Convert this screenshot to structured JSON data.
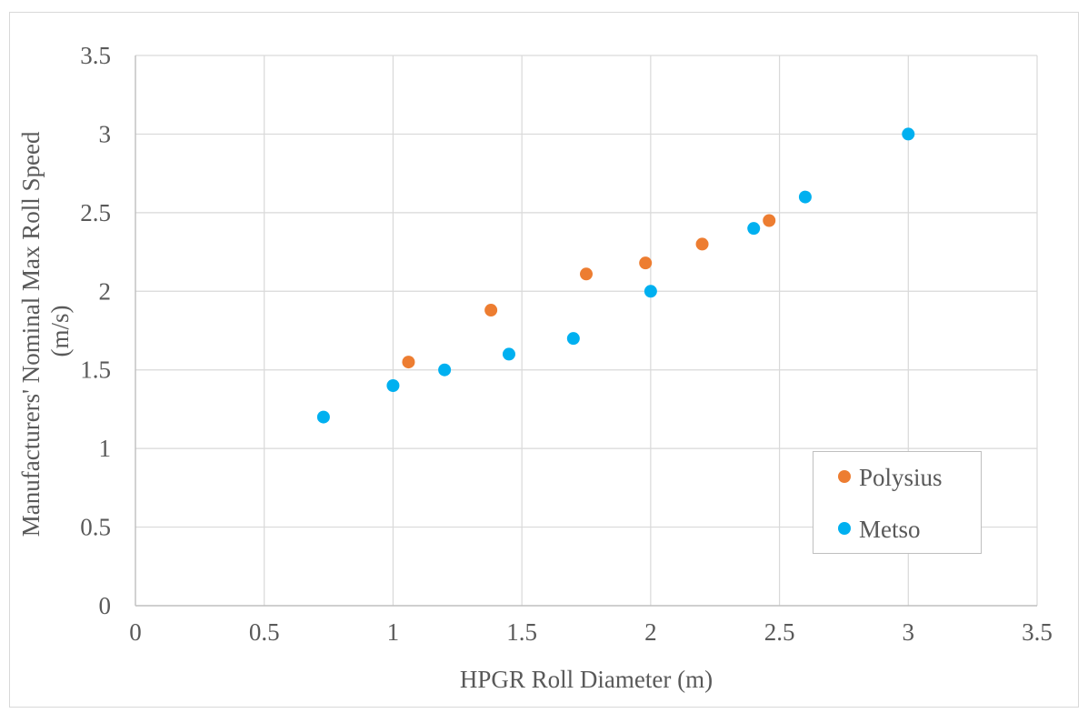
{
  "chart_data": {
    "type": "scatter",
    "title": "",
    "xlabel": "HPGR Roll Diameter (m)",
    "ylabel_lines": [
      "Manufacturers' Nominal Max Roll Speed",
      "(m/s)"
    ],
    "xlim": [
      0,
      3.5
    ],
    "ylim": [
      0,
      3.5
    ],
    "x_ticks": [
      "0",
      "0.5",
      "1",
      "1.5",
      "2",
      "2.5",
      "3",
      "3.5"
    ],
    "y_ticks": [
      "0",
      "0.5",
      "1",
      "1.5",
      "2",
      "2.5",
      "3",
      "3.5"
    ],
    "x_tick_values": [
      0,
      0.5,
      1,
      1.5,
      2,
      2.5,
      3,
      3.5
    ],
    "y_tick_values": [
      0,
      0.5,
      1,
      1.5,
      2,
      2.5,
      3,
      3.5
    ],
    "grid": true,
    "legend_position": "bottom-right",
    "series": [
      {
        "name": "Polysius",
        "color": "#ED7D31",
        "points": [
          {
            "x": 1.06,
            "y": 1.55
          },
          {
            "x": 1.38,
            "y": 1.88
          },
          {
            "x": 1.75,
            "y": 2.11
          },
          {
            "x": 1.98,
            "y": 2.18
          },
          {
            "x": 2.2,
            "y": 2.3
          },
          {
            "x": 2.46,
            "y": 2.45
          }
        ]
      },
      {
        "name": "Metso",
        "color": "#00B0F0",
        "points": [
          {
            "x": 0.73,
            "y": 1.2
          },
          {
            "x": 1.0,
            "y": 1.4
          },
          {
            "x": 1.2,
            "y": 1.5
          },
          {
            "x": 1.45,
            "y": 1.6
          },
          {
            "x": 1.7,
            "y": 1.7
          },
          {
            "x": 2.0,
            "y": 2.0
          },
          {
            "x": 2.4,
            "y": 2.4
          },
          {
            "x": 2.6,
            "y": 2.6
          },
          {
            "x": 3.0,
            "y": 3.0
          }
        ]
      }
    ]
  }
}
